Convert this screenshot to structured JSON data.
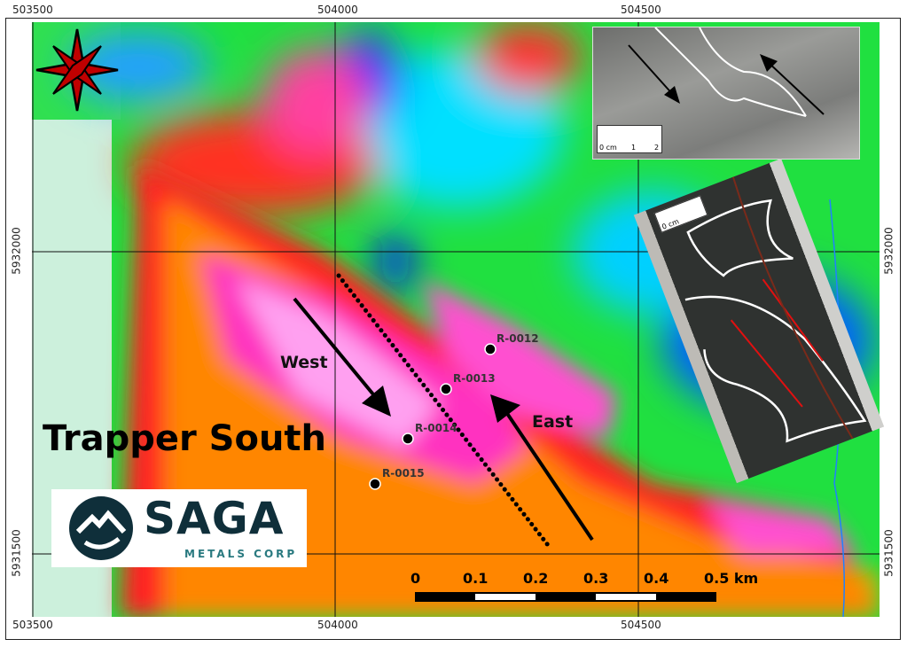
{
  "map": {
    "title": "Trapper South",
    "x_ticks": [
      "503500",
      "504000",
      "504500"
    ],
    "y_ticks": [
      "5932000",
      "5931500"
    ],
    "labels": {
      "west": "West",
      "east": "East"
    },
    "samples": [
      "R-0012",
      "R-0013",
      "R-0014",
      "R-0015"
    ],
    "scale_bar": [
      "0",
      "0.1",
      "0.2",
      "0.3",
      "0.4",
      "0.5 km"
    ],
    "north_arrow_color": "#c00000"
  },
  "logo": {
    "name": "SAGA",
    "subtitle": "METALS CORP",
    "color": "#0f2f3a"
  },
  "insets": {
    "ruler_label": "0 cm",
    "ruler_ticks": [
      "1",
      "2"
    ],
    "arrow_color": "#e01010"
  }
}
